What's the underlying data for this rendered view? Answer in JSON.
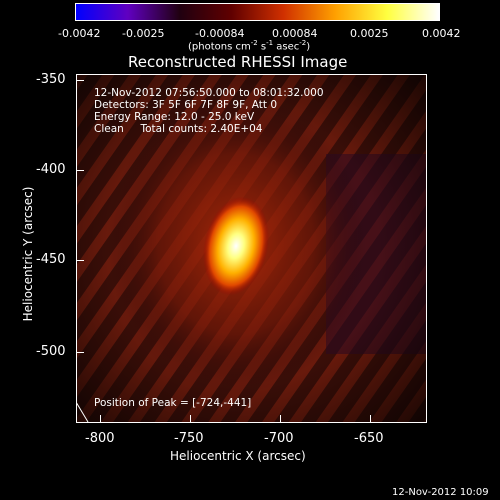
{
  "colorbar": {
    "tick_labels": [
      "-0.0042",
      "-0.0025",
      "-0.00084",
      "0.00084",
      "0.0025",
      "0.0042"
    ],
    "units_label": "(photons cm",
    "units_sup1": "-2",
    "units_mid1": " s",
    "units_sup2": "-1",
    "units_mid2": " asec",
    "units_sup3": "-2",
    "units_end": ")"
  },
  "plot": {
    "title": "Reconstructed RHESSI Image",
    "xlabel": "Heliocentric X (arcsec)",
    "ylabel": "Heliocentric Y (arcsec)",
    "x_ticks": [
      "-800",
      "-750",
      "-700",
      "-650"
    ],
    "y_ticks": [
      "-350",
      "-400",
      "-450",
      "-500"
    ]
  },
  "annotation": {
    "line1": "12-Nov-2012 07:56:50.000 to 08:01:32.000",
    "line2": "Detectors: 3F 5F 6F 7F 8F 9F, Att 0",
    "line3": "Energy Range: 12.0 - 25.0 keV",
    "line4": "Clean     Total counts: 2.40E+04",
    "peak": "Position of Peak = [-724,-441]"
  },
  "footer": {
    "timestamp": "12-Nov-2012 10:09"
  },
  "colors": {
    "background": "#000000",
    "text": "#ffffff",
    "colormap": [
      "#0000ff",
      "#6000c0",
      "#200010",
      "#600000",
      "#d03000",
      "#ffa000",
      "#ffff40",
      "#ffffff"
    ]
  }
}
